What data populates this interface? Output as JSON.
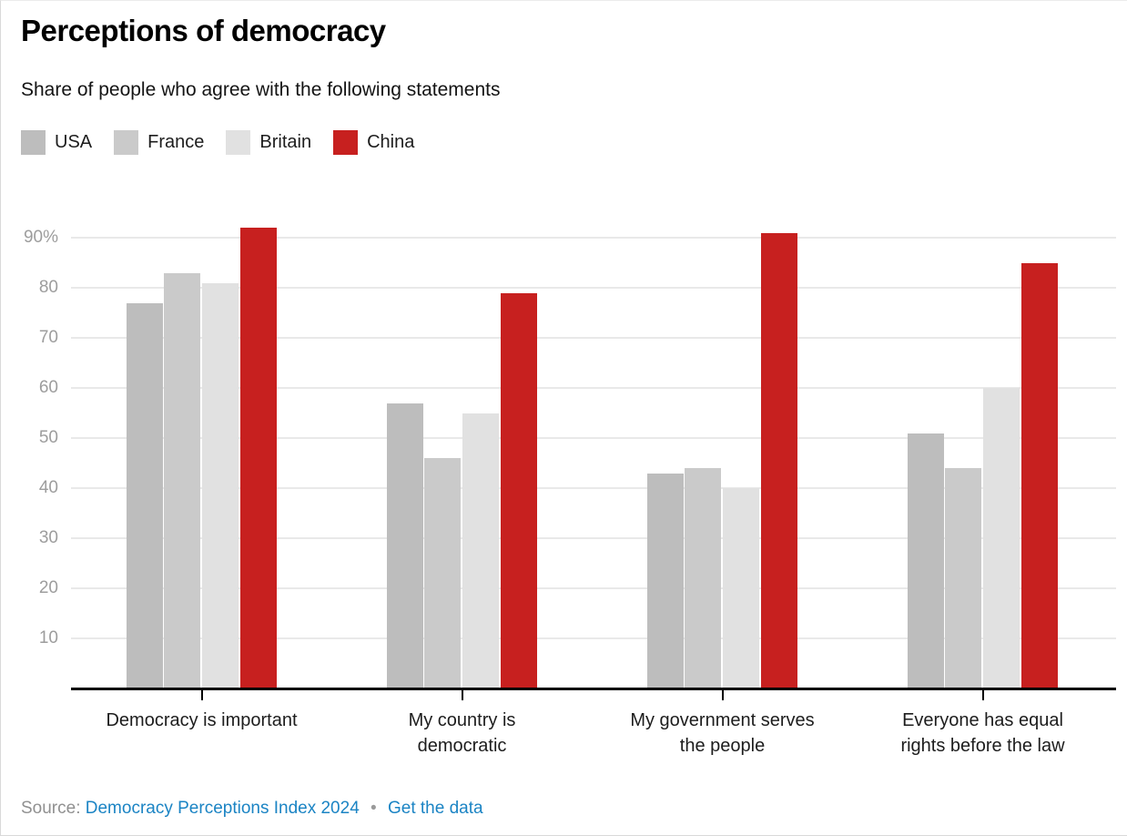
{
  "header": {
    "title": "Perceptions of democracy",
    "subtitle": "Share of people who agree with the following statements"
  },
  "legend": [
    {
      "label": "USA",
      "color": "#bdbdbd"
    },
    {
      "label": "France",
      "color": "#cacaca"
    },
    {
      "label": "Britain",
      "color": "#e1e1e1"
    },
    {
      "label": "China",
      "color": "#c7201f"
    }
  ],
  "chart_data": {
    "type": "bar",
    "title": "Perceptions of democracy",
    "subtitle": "Share of people who agree with the following statements",
    "categories": [
      "Democracy is important",
      "My country is\ndemocratic",
      "My government serves\nthe people",
      "Everyone has equal\nrights before the law"
    ],
    "series": [
      {
        "name": "USA",
        "color": "#bdbdbd",
        "values": [
          77,
          57,
          43,
          51
        ]
      },
      {
        "name": "France",
        "color": "#cacaca",
        "values": [
          83,
          46,
          44,
          44
        ]
      },
      {
        "name": "Britain",
        "color": "#e1e1e1",
        "values": [
          81,
          55,
          40,
          60
        ]
      },
      {
        "name": "China",
        "color": "#c7201f",
        "values": [
          92,
          79,
          91,
          85
        ]
      }
    ],
    "xlabel": "",
    "ylabel": "",
    "ylim": [
      0,
      95
    ],
    "y_ticks": [
      10,
      20,
      30,
      40,
      50,
      60,
      70,
      80,
      90
    ],
    "y_tick_labels": [
      "10",
      "20",
      "30",
      "40",
      "50",
      "60",
      "70",
      "80",
      "90%"
    ],
    "grid": true,
    "legend_position": "top",
    "grid_color": "#e9e9e9",
    "axis_color": "#000000"
  },
  "footer": {
    "source_label": "Source:",
    "source_link": "Democracy Perceptions Index 2024",
    "separator": "•",
    "data_link": "Get the data",
    "link_color": "#1b84c4"
  }
}
